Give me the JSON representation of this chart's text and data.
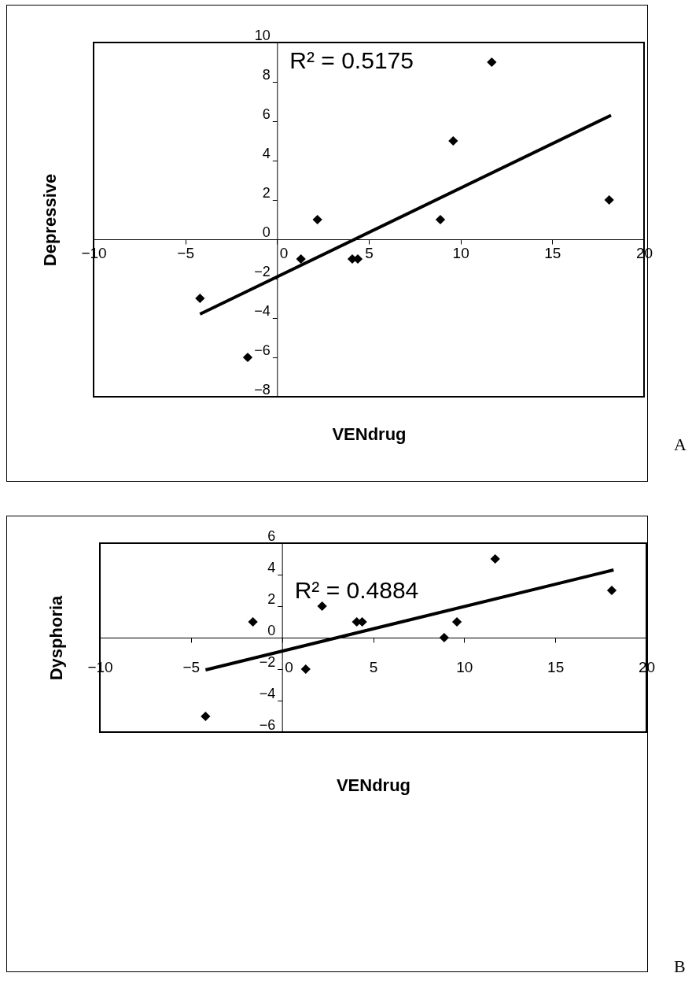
{
  "chart_data": [
    {
      "type": "scatter",
      "xlabel": "VENdrug",
      "ylabel": "Depressive",
      "xlim": [
        -10,
        20
      ],
      "xticks": [
        -10,
        -5,
        0,
        5,
        10,
        15,
        20
      ],
      "ylim": [
        -8,
        10
      ],
      "yticks": [
        -8,
        -6,
        -4,
        -2,
        0,
        2,
        4,
        6,
        8,
        10
      ],
      "grid": false,
      "series": [
        {
          "color": "#000000",
          "marker": "diamond",
          "x": [
            -4.2,
            -1.6,
            1.3,
            2.2,
            4.1,
            4.4,
            8.9,
            9.6,
            11.7,
            18.1
          ],
          "values": [
            -3,
            -6,
            -1,
            1,
            -1,
            -1,
            1,
            5,
            9,
            2
          ]
        },
        {
          "type": "line",
          "color": "#000000",
          "x": [
            -4.2,
            18.2
          ],
          "values": [
            -3.8,
            6.3
          ]
        }
      ],
      "annotations": [
        "R² = 0.5175",
        "A"
      ]
    },
    {
      "type": "scatter",
      "xlabel": "VENdrug",
      "ylabel": "Dysphoria",
      "xlim": [
        -10,
        20
      ],
      "xticks": [
        -10,
        -5,
        0,
        5,
        10,
        15,
        20
      ],
      "ylim": [
        -6,
        6
      ],
      "yticks": [
        -6,
        -4,
        -2,
        0,
        2,
        4,
        6
      ],
      "grid": false,
      "series": [
        {
          "color": "#000000",
          "marker": "diamond",
          "x": [
            -4.2,
            -1.6,
            1.3,
            2.2,
            4.1,
            4.4,
            8.9,
            9.6,
            11.7,
            18.1
          ],
          "values": [
            -5,
            1,
            -2,
            2,
            1,
            1,
            0,
            1,
            5,
            3
          ]
        },
        {
          "type": "line",
          "color": "#000000",
          "x": [
            -4.2,
            18.2
          ],
          "values": [
            -2.05,
            4.3
          ]
        }
      ],
      "annotations": [
        "R² = 0.4884",
        "B"
      ]
    }
  ]
}
